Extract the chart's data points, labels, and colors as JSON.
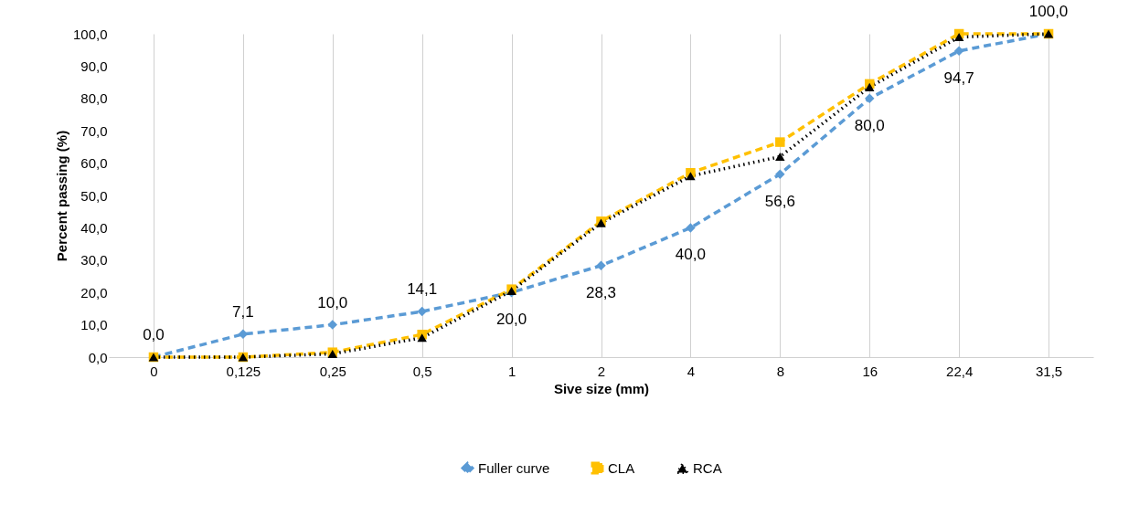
{
  "chart_data": {
    "type": "line",
    "xlabel": "Sive size (mm)",
    "ylabel": "Percent passing (%)",
    "categories": [
      "0",
      "0,125",
      "0,25",
      "0,5",
      "1",
      "2",
      "4",
      "8",
      "16",
      "22,4",
      "31,5"
    ],
    "series": [
      {
        "name": "Fuller curve",
        "color": "#5b9bd5",
        "marker": "diamond",
        "line_style": "dashed",
        "values": [
          0.0,
          7.1,
          10.0,
          14.1,
          20.0,
          28.3,
          40.0,
          56.6,
          80.0,
          94.7,
          100.0
        ],
        "value_labels": [
          "0,0",
          "7,1",
          "10,0",
          "14,1",
          "20,0",
          "28,3",
          "40,0",
          "56,6",
          "80,0",
          "94,7",
          "100,0"
        ]
      },
      {
        "name": "CLA",
        "color": "#ffc000",
        "marker": "square",
        "line_style": "dashed",
        "values": [
          0,
          0,
          1.5,
          7,
          21,
          42,
          57,
          66.5,
          84.5,
          100,
          100
        ]
      },
      {
        "name": "RCA",
        "color": "#000000",
        "marker": "triangle",
        "line_style": "dotted",
        "values": [
          0,
          0,
          1,
          6,
          20.5,
          41.5,
          56,
          62,
          83.5,
          99,
          100
        ]
      }
    ],
    "ylim": [
      0,
      100
    ],
    "yticks": [
      {
        "value": 0,
        "label": "0,0"
      },
      {
        "value": 10,
        "label": "10,0"
      },
      {
        "value": 20,
        "label": "20,0"
      },
      {
        "value": 30,
        "label": "30,0"
      },
      {
        "value": 40,
        "label": "40,0"
      },
      {
        "value": 50,
        "label": "50,0"
      },
      {
        "value": 60,
        "label": "60,0"
      },
      {
        "value": 70,
        "label": "70,0"
      },
      {
        "value": 80,
        "label": "80,0"
      },
      {
        "value": 90,
        "label": "90,0"
      },
      {
        "value": 100,
        "label": "100,0"
      }
    ],
    "grid": "x",
    "legend": "bottom"
  }
}
